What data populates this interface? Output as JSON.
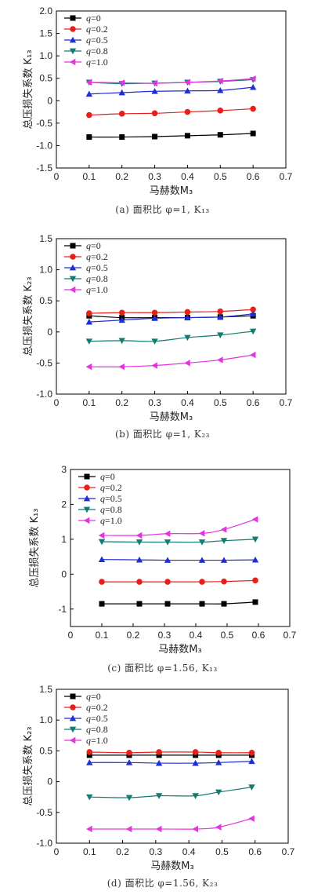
{
  "chart_data": [
    {
      "type": "line",
      "caption": "(a) 面积比 φ=1, K₁₃",
      "xlabel": "马赫数M₃",
      "ylabel": "总压损失系数 K₁₃",
      "xlim": [
        0,
        0.7
      ],
      "ylim": [
        -1.5,
        2.0
      ],
      "xticks": [
        "0",
        "0.1",
        "0.2",
        "0.3",
        "0.4",
        "0.5",
        "0.6",
        "0.7"
      ],
      "yticks": [
        "-1.5",
        "-1.0",
        "-0.5",
        "0",
        "0.5",
        "1.0",
        "1.5",
        "2.0"
      ],
      "legend_placement": "top-left",
      "x": [
        0.1,
        0.2,
        0.3,
        0.4,
        0.5,
        0.6
      ],
      "series": [
        {
          "name": "q=0",
          "values": [
            -0.81,
            -0.81,
            -0.8,
            -0.78,
            -0.76,
            -0.73
          ]
        },
        {
          "name": "q=0.2",
          "values": [
            -0.32,
            -0.29,
            -0.28,
            -0.25,
            -0.22,
            -0.18
          ]
        },
        {
          "name": "q=0.5",
          "values": [
            0.15,
            0.18,
            0.21,
            0.22,
            0.23,
            0.3
          ]
        },
        {
          "name": "q=0.8",
          "values": [
            0.41,
            0.38,
            0.39,
            0.41,
            0.43,
            0.47
          ]
        },
        {
          "name": "q=1.0",
          "values": [
            0.41,
            0.4,
            0.39,
            0.41,
            0.44,
            0.49
          ]
        }
      ]
    },
    {
      "type": "line",
      "caption": "(b) 面积比 φ=1, K₂₃",
      "xlabel": "马赫数M₃",
      "ylabel": "总压损失系数 K₂₃",
      "xlim": [
        0,
        0.7
      ],
      "ylim": [
        -1.0,
        1.5
      ],
      "xticks": [
        "0",
        "0.1",
        "0.2",
        "0.3",
        "0.4",
        "0.5",
        "0.6",
        "0.7"
      ],
      "yticks": [
        "-1.0",
        "-0.5",
        "0",
        "0.5",
        "1.0",
        "1.5"
      ],
      "legend_placement": "top-left",
      "x": [
        0.1,
        0.2,
        0.3,
        0.4,
        0.5,
        0.6
      ],
      "series": [
        {
          "name": "q=0",
          "values": [
            0.26,
            0.23,
            0.23,
            0.23,
            0.24,
            0.26
          ]
        },
        {
          "name": "q=0.2",
          "values": [
            0.3,
            0.31,
            0.31,
            0.32,
            0.33,
            0.36
          ]
        },
        {
          "name": "q=0.5",
          "values": [
            0.16,
            0.19,
            0.22,
            0.23,
            0.24,
            0.29
          ]
        },
        {
          "name": "q=0.8",
          "values": [
            -0.15,
            -0.14,
            -0.15,
            -0.09,
            -0.05,
            0.01
          ]
        },
        {
          "name": "q=1.0",
          "values": [
            -0.56,
            -0.56,
            -0.54,
            -0.5,
            -0.45,
            -0.37
          ]
        }
      ]
    },
    {
      "type": "line",
      "caption": "(c) 面积比 φ=1.56, K₁₃",
      "xlabel": "马赫数M₃",
      "ylabel": "总压损失系数 K₁₃",
      "xlim": [
        0,
        0.7
      ],
      "ylim": [
        -1.5,
        3.0
      ],
      "xticks": [
        "0",
        "0.1",
        "0.2",
        "0.3",
        "0.4",
        "0.5",
        "0.6",
        "0.7"
      ],
      "yticks": [
        "-1",
        "0",
        "1",
        "2",
        "3"
      ],
      "legend_placement": "top-left",
      "x": [
        0.1,
        0.22,
        0.31,
        0.42,
        0.49,
        0.59
      ],
      "series": [
        {
          "name": "q=0",
          "values": [
            -0.85,
            -0.85,
            -0.85,
            -0.85,
            -0.85,
            -0.8
          ]
        },
        {
          "name": "q=0.2",
          "values": [
            -0.22,
            -0.22,
            -0.22,
            -0.22,
            -0.21,
            -0.18
          ]
        },
        {
          "name": "q=0.5",
          "values": [
            0.42,
            0.41,
            0.4,
            0.4,
            0.4,
            0.41
          ]
        },
        {
          "name": "q=0.8",
          "values": [
            0.93,
            0.92,
            0.92,
            0.92,
            0.96,
            1.0
          ]
        },
        {
          "name": "q=1.0",
          "values": [
            1.11,
            1.11,
            1.16,
            1.17,
            1.28,
            1.57
          ]
        }
      ]
    },
    {
      "type": "line",
      "caption": "(d) 面积比 φ=1.56, K₂₃",
      "xlabel": "马赫数M₃",
      "ylabel": "总压损失系数 K₂₃",
      "xlim": [
        0,
        0.7
      ],
      "ylim": [
        -1.0,
        1.5
      ],
      "xticks": [
        "0",
        "0.1",
        "0.2",
        "0.3",
        "0.4",
        "0.5",
        "0.6",
        "0.7"
      ],
      "yticks": [
        "-1.0",
        "-0.5",
        "0",
        "0.5",
        "1.0",
        "1.5"
      ],
      "legend_placement": "top-left",
      "x": [
        0.1,
        0.22,
        0.31,
        0.42,
        0.49,
        0.59
      ],
      "series": [
        {
          "name": "q=0",
          "values": [
            0.43,
            0.43,
            0.43,
            0.43,
            0.43,
            0.43
          ]
        },
        {
          "name": "q=0.2",
          "values": [
            0.48,
            0.47,
            0.48,
            0.48,
            0.47,
            0.47
          ]
        },
        {
          "name": "q=0.5",
          "values": [
            0.31,
            0.31,
            0.3,
            0.3,
            0.31,
            0.33
          ]
        },
        {
          "name": "q=0.8",
          "values": [
            -0.25,
            -0.26,
            -0.23,
            -0.23,
            -0.17,
            -0.09
          ]
        },
        {
          "name": "q=1.0",
          "values": [
            -0.77,
            -0.77,
            -0.77,
            -0.77,
            -0.74,
            -0.6
          ]
        }
      ]
    }
  ],
  "colors": {
    "q=0": "#000000",
    "q=0.2": "#e8201a",
    "q=0.5": "#1f2fd0",
    "q=0.8": "#137b70",
    "q=1.0": "#e234e0"
  },
  "markers": {
    "q=0": "square",
    "q=0.2": "circle",
    "q=0.5": "triangle-up",
    "q=0.8": "triangle-down",
    "q=1.0": "triangle-left"
  }
}
